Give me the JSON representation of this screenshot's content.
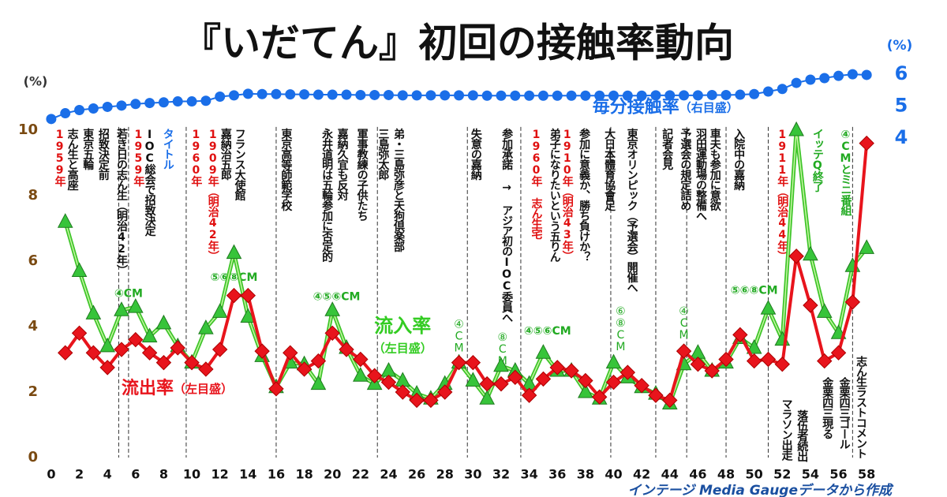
{
  "chart_data": {
    "type": "line",
    "title": "『いだてん』初回の接触率動向",
    "y_unit": "(%)",
    "y2_unit": "(%)",
    "footer": "インテージ Media Gaugeデータから作成",
    "x": [
      0,
      1,
      2,
      3,
      4,
      5,
      6,
      7,
      8,
      9,
      10,
      11,
      12,
      13,
      14,
      15,
      16,
      17,
      18,
      19,
      20,
      21,
      22,
      23,
      24,
      25,
      26,
      27,
      28,
      29,
      30,
      31,
      32,
      33,
      34,
      35,
      36,
      37,
      38,
      39,
      40,
      41,
      42,
      43,
      44,
      45,
      46,
      47,
      48,
      49,
      50,
      51,
      52,
      53,
      54,
      55,
      56,
      57,
      58
    ],
    "xlim": [
      -0.5,
      59
    ],
    "xticks": [
      0,
      2,
      4,
      6,
      8,
      10,
      12,
      14,
      16,
      18,
      20,
      22,
      24,
      26,
      28,
      30,
      32,
      34,
      36,
      38,
      40,
      42,
      44,
      46,
      48,
      50,
      52,
      54,
      56,
      58
    ],
    "ylim": [
      0,
      12
    ],
    "yticks": [
      0,
      2,
      4,
      6,
      8,
      10
    ],
    "y2lim": [
      -6,
      6.3
    ],
    "y2ticks": [
      4,
      5,
      6
    ],
    "series": [
      {
        "name": "流入率",
        "note": "（左目盛）",
        "color": "#3fc52a",
        "marker": "triangle",
        "label_at": [
          25,
          4
        ],
        "values": [
          null,
          7.2,
          5.7,
          4.4,
          3.4,
          4.5,
          4.6,
          3.7,
          4.1,
          3.4,
          2.9,
          3.95,
          4.45,
          6.25,
          4.3,
          3.1,
          2.15,
          2.9,
          2.85,
          2.25,
          4.5,
          3.35,
          2.5,
          2.25,
          2.65,
          2.35,
          1.95,
          1.8,
          2.25,
          2.9,
          2.35,
          1.8,
          2.8,
          2.65,
          2.25,
          3.2,
          2.65,
          2.65,
          2.0,
          1.8,
          2.9,
          2.45,
          2.15,
          1.95,
          1.65,
          2.85,
          3.2,
          2.65,
          2.9,
          3.65,
          3.35,
          4.55,
          3.6,
          10.0,
          6.2,
          4.45,
          3.8,
          5.85,
          6.4
        ]
      },
      {
        "name": "流出率",
        "note": "（左目盛）",
        "color": "#e8141c",
        "marker": "diamond",
        "label_at": [
          5,
          2.1
        ],
        "values": [
          null,
          3.2,
          3.8,
          3.2,
          2.75,
          3.3,
          3.6,
          3.2,
          2.9,
          3.35,
          2.9,
          2.7,
          3.3,
          4.95,
          4.95,
          3.25,
          2.1,
          3.2,
          2.7,
          2.95,
          3.8,
          3.3,
          3.0,
          2.5,
          2.3,
          2.0,
          1.75,
          1.75,
          2.0,
          2.9,
          2.9,
          2.25,
          2.25,
          2.45,
          1.9,
          2.4,
          2.75,
          2.65,
          2.35,
          1.85,
          2.3,
          2.6,
          2.2,
          1.9,
          1.75,
          3.25,
          2.85,
          2.65,
          3.0,
          3.75,
          2.95,
          3.0,
          2.85,
          6.15,
          4.65,
          2.95,
          3.2,
          4.75,
          9.6
        ]
      },
      {
        "name": "毎分接触率",
        "note": "（右目盛）",
        "color": "#1a6ee8",
        "marker": "circle",
        "axis": "y2",
        "label_at": [
          38.5,
          4.95
        ],
        "values": [
          4.6,
          4.78,
          4.88,
          4.93,
          4.98,
          5.02,
          5.07,
          5.1,
          5.12,
          5.15,
          5.15,
          5.17,
          5.3,
          5.34,
          5.39,
          5.38,
          5.38,
          5.37,
          5.37,
          5.36,
          5.36,
          5.36,
          5.35,
          5.35,
          5.35,
          5.34,
          5.34,
          5.34,
          5.34,
          5.34,
          5.34,
          5.33,
          5.33,
          5.33,
          5.33,
          5.33,
          5.33,
          5.33,
          5.33,
          5.33,
          5.33,
          5.33,
          5.33,
          5.34,
          5.34,
          5.34,
          5.34,
          5.35,
          5.35,
          5.36,
          5.38,
          5.46,
          5.54,
          5.73,
          5.83,
          5.88,
          5.95,
          6.0,
          5.98
        ]
      }
    ],
    "event_lines": [
      4.8,
      5.5,
      9.6,
      16,
      23.2,
      29.6,
      33.4,
      39.8,
      43,
      45.2,
      48,
      51,
      57
    ],
    "annotations": [
      {
        "x": 0.6,
        "text": "1959年",
        "color": "#e01010"
      },
      {
        "x": 1.5,
        "text": "志ん生と高座",
        "color": "#111111"
      },
      {
        "x": 2.6,
        "text": "東京五輪",
        "color": "#111111"
      },
      {
        "x": 3.7,
        "text": "招致決定前",
        "color": "#111111"
      },
      {
        "x": 5.0,
        "text": "若き日の志ん生（明治42年）",
        "color": "#111111"
      },
      {
        "x": 6.2,
        "text": "1959年",
        "color": "#e01010"
      },
      {
        "x": 7.0,
        "text": "IOC総会で招致決定",
        "color": "#111111"
      },
      {
        "x": 8.3,
        "text": "タイトル",
        "color": "#1a6ee8"
      },
      {
        "x": 10.3,
        "text": "1960年",
        "color": "#e01010"
      },
      {
        "x": 11.5,
        "text": "1909年（明治42年）",
        "color": "#e01010"
      },
      {
        "x": 12.4,
        "text": "嘉納治五郎",
        "color": "#111111"
      },
      {
        "x": 13.4,
        "text": "フランス大使館",
        "color": "#111111"
      },
      {
        "x": 16.7,
        "text": "東京高等師範学校",
        "color": "#111111"
      },
      {
        "x": 19.6,
        "text": "永井道明は五輪参加に否定的",
        "color": "#111111"
      },
      {
        "x": 20.7,
        "text": "嘉納久宜も反対",
        "color": "#111111"
      },
      {
        "x": 22.1,
        "text": "軍事教練の子供たち",
        "color": "#111111"
      },
      {
        "x": 23.6,
        "text": "三島弥太郎",
        "color": "#111111"
      },
      {
        "x": 24.7,
        "text": "弟・三島弥彦と天狗倶楽部",
        "color": "#111111"
      },
      {
        "x": 30.2,
        "text": "失意の嘉納",
        "color": "#111111"
      },
      {
        "x": 32.4,
        "text": "参加承諾 → アジア初のIOC委員へ",
        "color": "#111111"
      },
      {
        "x": 34.5,
        "text": "1960年 志ん生宅",
        "color": "#e01010"
      },
      {
        "x": 35.8,
        "text": "弟子になりたいという五りん",
        "color": "#111111"
      },
      {
        "x": 36.7,
        "text": "1910年（明治43年）",
        "color": "#e01010"
      },
      {
        "x": 37.9,
        "text": "参加に意義か、勝ち負けか？",
        "color": "#111111"
      },
      {
        "x": 39.7,
        "text": "大日本體育協會足",
        "color": "#111111"
      },
      {
        "x": 41.3,
        "text": "東京オリンピック（予選会）開催へ",
        "color": "#111111"
      },
      {
        "x": 43.8,
        "text": "記者会見",
        "color": "#111111"
      },
      {
        "x": 45.1,
        "text": "予選会の規定詰め",
        "color": "#111111"
      },
      {
        "x": 46.2,
        "text": "羽田運動場の整備へ",
        "color": "#111111"
      },
      {
        "x": 47.2,
        "text": "車夫も参加に意欲",
        "color": "#111111"
      },
      {
        "x": 48.9,
        "text": "入院中の嘉納",
        "color": "#111111"
      },
      {
        "x": 52.0,
        "text": "1911年（明治44年）",
        "color": "#e01010"
      },
      {
        "x": 54.5,
        "text": "イッテQ終了",
        "color": "#22aa22"
      },
      {
        "x": 56.5,
        "text": "④CMとミニ番組",
        "color": "#22aa22"
      }
    ],
    "bottom_annotations": [
      {
        "x": 52.3,
        "y": 1.8,
        "text": "マラソン出走"
      },
      {
        "x": 53.4,
        "y": 1.45,
        "text": "落伍者続出"
      },
      {
        "x": 55.2,
        "y": 2.45,
        "text": "金栗四三現る"
      },
      {
        "x": 56.4,
        "y": 2.45,
        "text": "金栗四三ゴール"
      },
      {
        "x": 57.6,
        "y": 3.1,
        "text": "志ん生ラストコメント"
      }
    ],
    "cm_labels": [
      {
        "x": 5.5,
        "y": 5.0,
        "text": "④CM",
        "vertical": false
      },
      {
        "x": 13.0,
        "y": 5.5,
        "text": "⑤⑥⑧CM",
        "vertical": false
      },
      {
        "x": 20.3,
        "y": 4.9,
        "text": "④⑤⑥CM",
        "vertical": false
      },
      {
        "x": 29.0,
        "y": 4.25,
        "text": "④CM",
        "vertical": true
      },
      {
        "x": 32.1,
        "y": 3.85,
        "text": "⑧CM",
        "vertical": true
      },
      {
        "x": 35.3,
        "y": 3.85,
        "text": "④⑤⑥CM",
        "vertical": false
      },
      {
        "x": 40.5,
        "y": 4.65,
        "text": "⑥⑧CM",
        "vertical": true
      },
      {
        "x": 45.0,
        "y": 4.65,
        "text": "④CM",
        "vertical": true
      },
      {
        "x": 50.0,
        "y": 5.1,
        "text": "⑤⑥⑧CM",
        "vertical": false
      }
    ]
  }
}
